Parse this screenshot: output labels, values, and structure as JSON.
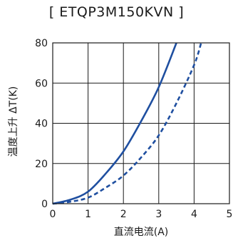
{
  "chart_data": {
    "type": "line",
    "title": "[ ETQP3M150KVN ]",
    "xlabel": "直流电流(A)",
    "ylabel": "温度上升 ΔT(K)",
    "xlim": [
      0,
      5
    ],
    "ylim": [
      0,
      80
    ],
    "xticks": [
      0,
      1,
      2,
      3,
      4,
      5
    ],
    "yticks": [
      0,
      20,
      40,
      60,
      80
    ],
    "grid": true,
    "series": [
      {
        "style": "solid",
        "color": "#1f4fa0",
        "x": [
          0,
          0.5,
          1.0,
          1.5,
          2.0,
          2.5,
          3.0,
          3.5
        ],
        "y": [
          0,
          2,
          6,
          15,
          26,
          41,
          58,
          80
        ]
      },
      {
        "style": "dashed",
        "color": "#1f4fa0",
        "x": [
          0,
          0.5,
          1.0,
          1.5,
          2.0,
          2.5,
          3.0,
          3.5,
          4.0,
          4.2
        ],
        "y": [
          0,
          1,
          3,
          8,
          14,
          23,
          34,
          50,
          69,
          80
        ]
      }
    ]
  }
}
